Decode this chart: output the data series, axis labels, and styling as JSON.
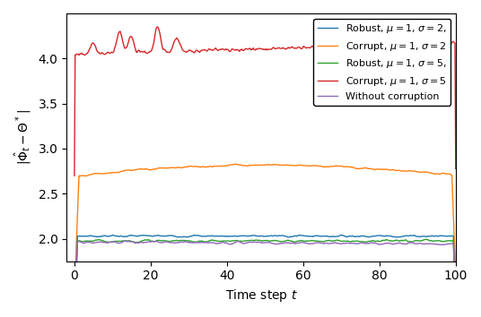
{
  "title": "",
  "xlabel": "Time step $t$",
  "ylabel": "$|\\hat{\\Phi}_t - \\Theta^*|$",
  "xlim": [
    -2,
    100
  ],
  "ylim": [
    1.75,
    4.5
  ],
  "yticks": [
    2.0,
    2.5,
    3.0,
    3.5,
    4.0
  ],
  "xticks": [
    0,
    20,
    40,
    60,
    80,
    100
  ],
  "legend_entries": [
    "Robust, $\\mu=1$, $\\sigma=2$,",
    "Corrupt, $\\mu=1$, $\\sigma=2$",
    "Robust, $\\mu=1$, $\\sigma=5$,",
    "Corrupt, $\\mu=1$, $\\sigma=5$",
    "Without corruption"
  ],
  "line_colors": [
    "#1f77b4",
    "#ff7f0e",
    "#2ca02c",
    "#d62728",
    "#9467bd"
  ],
  "figsize": [
    5.36,
    3.54
  ],
  "dpi": 100
}
